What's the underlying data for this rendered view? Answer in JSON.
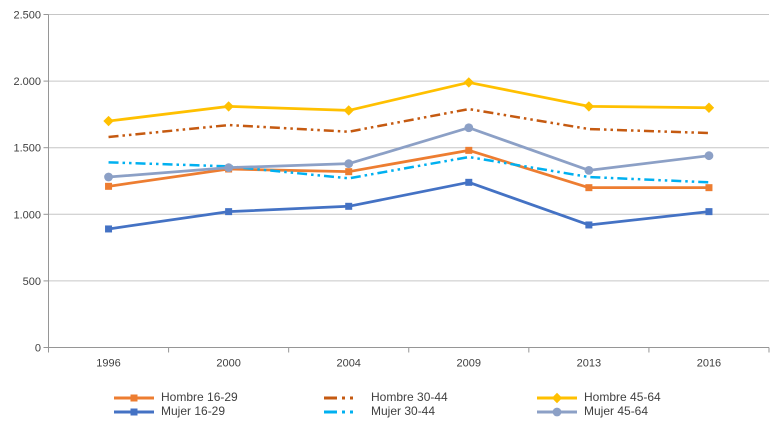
{
  "chart_data": {
    "type": "line",
    "title": "",
    "categories": [
      "1996",
      "2000",
      "2004",
      "2009",
      "2013",
      "2016"
    ],
    "series": [
      {
        "name": "Hombre 16-29",
        "color": "#ED7D31",
        "line": "solid",
        "marker": "square",
        "values": [
          1210,
          1340,
          1320,
          1480,
          1200,
          1200
        ]
      },
      {
        "name": "Hombre 30-44",
        "color": "#C55A11",
        "line": "dash-dot-dot",
        "marker": "none",
        "values": [
          1580,
          1670,
          1620,
          1790,
          1640,
          1610
        ]
      },
      {
        "name": "Hombre 45-64",
        "color": "#FFC000",
        "line": "solid",
        "marker": "diamond",
        "values": [
          1700,
          1810,
          1780,
          1990,
          1810,
          1800
        ]
      },
      {
        "name": "Mujer 16-29",
        "color": "#4472C4",
        "line": "solid",
        "marker": "square",
        "values": [
          890,
          1020,
          1060,
          1240,
          920,
          1020
        ]
      },
      {
        "name": "Mujer 30-44",
        "color": "#00B0F0",
        "line": "dash-dot-dot",
        "marker": "none",
        "values": [
          1390,
          1360,
          1270,
          1430,
          1280,
          1240
        ]
      },
      {
        "name": "Mujer 45-64",
        "color": "#8CA0C6",
        "line": "solid",
        "marker": "circle",
        "values": [
          1280,
          1350,
          1380,
          1650,
          1330,
          1440
        ]
      }
    ],
    "xlabel": "",
    "ylabel": "",
    "ylim": [
      0,
      2500
    ],
    "yticks": [
      {
        "value": 0,
        "label": "0"
      },
      {
        "value": 500,
        "label": "500"
      },
      {
        "value": 1000,
        "label": "1.000"
      },
      {
        "value": 1500,
        "label": "1.500"
      },
      {
        "value": 2000,
        "label": "2.000"
      },
      {
        "value": 2500,
        "label": "2.500"
      }
    ],
    "grid": true,
    "legend_position": "bottom",
    "colors": {
      "gridline": "#C6C6C6",
      "axis": "#969696",
      "text": "#404040"
    }
  }
}
